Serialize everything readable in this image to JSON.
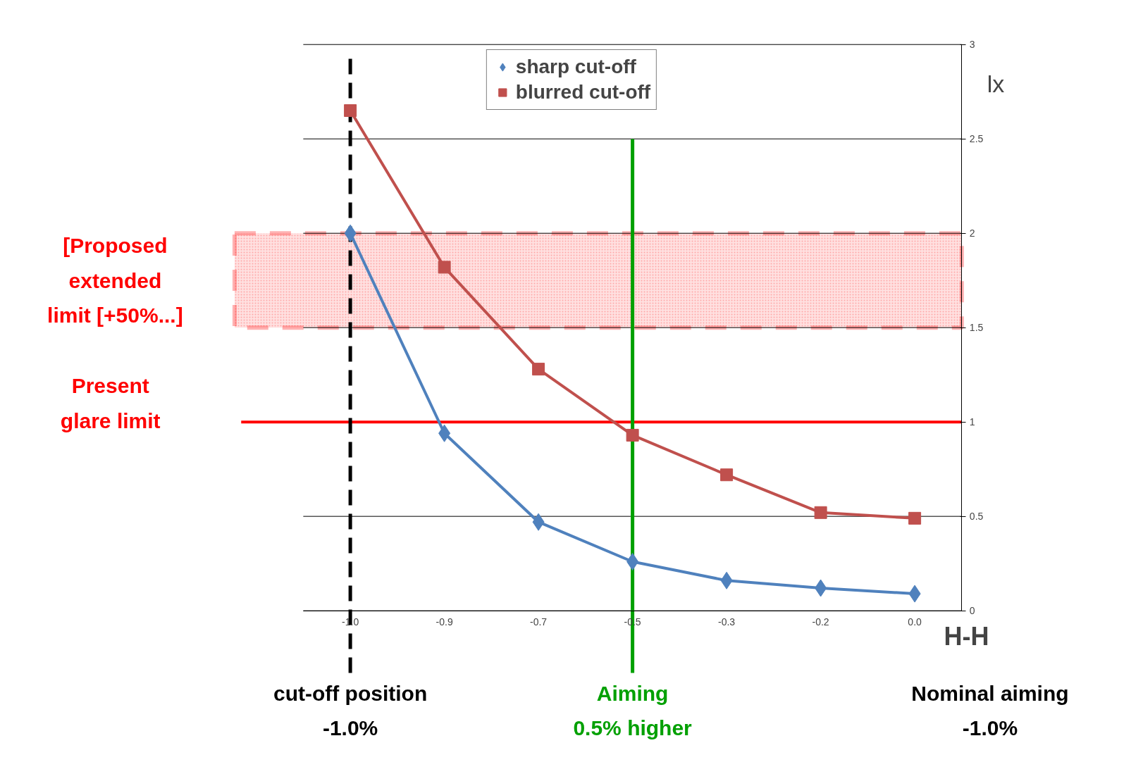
{
  "chart_data": {
    "type": "line",
    "xlabel": "H-H",
    "ylabel": "lx",
    "categories": [
      "-1.0",
      "-0.9",
      "-0.7",
      "-0.5",
      "-0.3",
      "-0.2",
      "0.0"
    ],
    "series": [
      {
        "name": "sharp cut-off",
        "color": "#4f81bd",
        "marker": "diamond",
        "values": [
          2.0,
          0.94,
          0.47,
          0.26,
          0.16,
          0.12,
          0.09
        ]
      },
      {
        "name": "blurred cut-off",
        "color": "#c0504d",
        "marker": "square",
        "values": [
          2.65,
          1.82,
          1.28,
          0.93,
          0.72,
          0.52,
          0.49
        ]
      }
    ],
    "ylim": [
      0,
      3
    ],
    "yticks": [
      0,
      0.5,
      1,
      1.5,
      2,
      2.5,
      3
    ],
    "grid": "y",
    "legend": "top",
    "ref_lines": [
      {
        "axis": "y",
        "value": 1,
        "label": "Present\nglare limit",
        "color": "#ff0000",
        "line_style": "solid"
      },
      {
        "axis": "x",
        "value": "-1.0",
        "label": "cut-off position\n-1.0%",
        "color": "#000000",
        "line_style": "dashed"
      },
      {
        "axis": "x",
        "value": "-0.5",
        "label": "Aiming\n0.5% higher",
        "color": "#00a000",
        "line_style": "solid"
      }
    ],
    "bands": [
      {
        "axis": "y",
        "from": 1.5,
        "to": 2,
        "label": "[Proposed\nextended\nlimit [+50%...]",
        "color": "#ff0000"
      }
    ],
    "annotations": [
      "Nominal aiming\n-1.0%"
    ]
  }
}
